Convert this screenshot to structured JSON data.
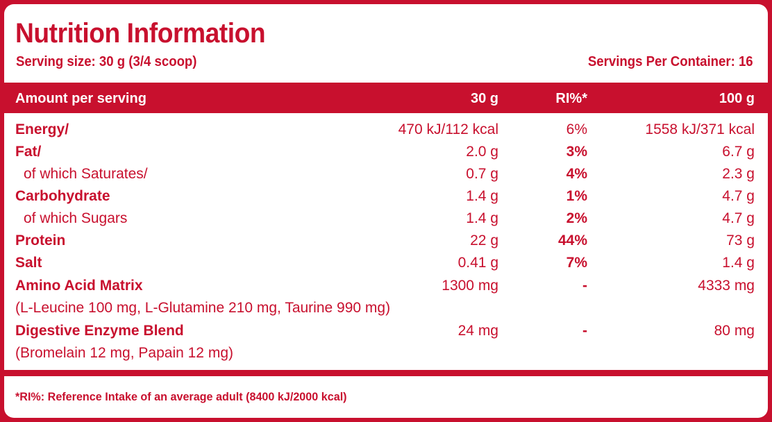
{
  "title": "Nutrition Information",
  "serving_size": "Serving size: 30 g (3/4 scoop)",
  "servings_per_container": "Servings Per Container: 16",
  "header": {
    "label": "Amount per serving",
    "col_30g": "30 g",
    "col_ri": "RI%*",
    "col_100g": "100 g"
  },
  "rows": [
    {
      "label": "Energy/",
      "v30": "470 kJ/112 kcal",
      "ri": "6%",
      "v100": "1558 kJ/371 kcal"
    },
    {
      "label": "Fat/",
      "v30": "2.0 g",
      "ri": "3%",
      "v100": "6.7 g"
    },
    {
      "label": "of which Saturates/",
      "v30": "0.7 g",
      "ri": "4%",
      "v100": "2.3 g"
    },
    {
      "label": "Carbohydrate",
      "v30": "1.4 g",
      "ri": "1%",
      "v100": "4.7 g"
    },
    {
      "label": "of which Sugars",
      "v30": "1.4 g",
      "ri": "2%",
      "v100": "4.7 g"
    },
    {
      "label": "Protein",
      "v30": "22 g",
      "ri": "44%",
      "v100": "73 g"
    },
    {
      "label": "Salt",
      "v30": "0.41 g",
      "ri": "7%",
      "v100": "1.4 g"
    },
    {
      "label": "Amino Acid Matrix",
      "v30": "1300 mg",
      "ri": "-",
      "v100": "4333 mg"
    },
    {
      "label": "(L-Leucine 100 mg, L-Glutamine 210 mg, Taurine 990 mg)"
    },
    {
      "label": "Digestive Enzyme Blend",
      "v30": "24 mg",
      "ri": "-",
      "v100": "80 mg"
    },
    {
      "label": "(Bromelain 12 mg, Papain 12 mg)"
    }
  ],
  "footnote": "*RI%: Reference Intake of an average adult (8400 kJ/2000 kcal)",
  "colors": {
    "brand_red": "#c8102e",
    "background": "#ffffff"
  }
}
